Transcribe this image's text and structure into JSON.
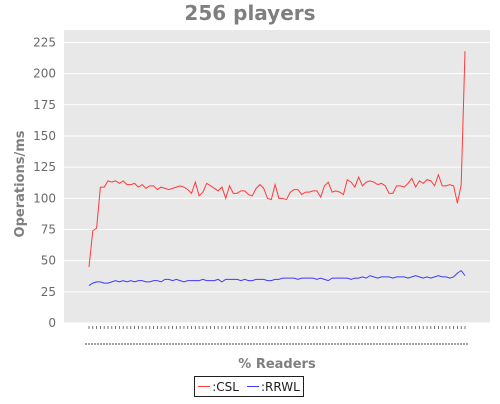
{
  "chart_data": {
    "type": "line",
    "title": "256 players",
    "xlabel": "% Readers",
    "ylabel": "Operations/ms",
    "ylim": [
      0,
      235
    ],
    "yticks": [
      0,
      25,
      50,
      75,
      100,
      125,
      150,
      175,
      200,
      225
    ],
    "grid": true,
    "legend_position": "bottom",
    "x": [
      1,
      2,
      3,
      4,
      5,
      6,
      7,
      8,
      9,
      10,
      11,
      12,
      13,
      14,
      15,
      16,
      17,
      18,
      19,
      20,
      21,
      22,
      23,
      24,
      25,
      26,
      27,
      28,
      29,
      30,
      31,
      32,
      33,
      34,
      35,
      36,
      37,
      38,
      39,
      40,
      41,
      42,
      43,
      44,
      45,
      46,
      47,
      48,
      49,
      50,
      51,
      52,
      53,
      54,
      55,
      56,
      57,
      58,
      59,
      60,
      61,
      62,
      63,
      64,
      65,
      66,
      67,
      68,
      69,
      70,
      71,
      72,
      73,
      74,
      75,
      76,
      77,
      78,
      79,
      80,
      81,
      82,
      83,
      84,
      85,
      86,
      87,
      88,
      89,
      90,
      91,
      92,
      93,
      94,
      95,
      96,
      97,
      98,
      99,
      100
    ],
    "series": [
      {
        "name": ":CSL",
        "color": "#ff3b3b",
        "values": [
          45,
          74,
          76,
          109,
          109,
          114,
          113,
          114,
          112,
          114,
          111,
          111,
          112,
          109,
          111,
          108,
          110,
          110,
          107,
          109,
          108,
          107,
          108,
          109,
          110,
          109,
          107,
          104,
          113,
          102,
          105,
          112,
          110,
          108,
          106,
          109,
          100,
          110,
          104,
          104,
          106,
          106,
          103,
          102,
          108,
          111,
          108,
          100,
          99,
          111,
          100,
          100,
          99,
          105,
          107,
          107,
          103,
          105,
          105,
          106,
          106,
          101,
          110,
          113,
          105,
          106,
          105,
          103,
          115,
          113,
          109,
          117,
          110,
          113,
          114,
          113,
          111,
          112,
          110,
          104,
          104,
          110,
          110,
          109,
          112,
          116,
          109,
          114,
          112,
          115,
          114,
          110,
          119,
          110,
          110,
          111,
          110,
          96,
          111,
          218
        ]
      },
      {
        "name": ":RRWL",
        "color": "#3b3bff",
        "values": [
          30,
          32,
          33,
          33,
          32,
          32,
          33,
          34,
          33,
          34,
          33,
          34,
          33,
          34,
          34,
          33,
          33,
          34,
          34,
          33,
          35,
          35,
          34,
          35,
          34,
          33,
          34,
          34,
          34,
          34,
          35,
          34,
          34,
          34,
          35,
          33,
          35,
          35,
          35,
          35,
          34,
          35,
          34,
          34,
          35,
          35,
          35,
          34,
          34,
          35,
          35,
          36,
          36,
          36,
          36,
          35,
          36,
          36,
          36,
          36,
          35,
          36,
          35,
          34,
          36,
          36,
          36,
          36,
          36,
          35,
          36,
          36,
          37,
          36,
          38,
          37,
          36,
          37,
          37,
          37,
          36,
          37,
          37,
          37,
          36,
          37,
          38,
          37,
          36,
          37,
          36,
          37,
          38,
          37,
          37,
          36,
          37,
          40,
          42,
          38
        ]
      }
    ]
  }
}
